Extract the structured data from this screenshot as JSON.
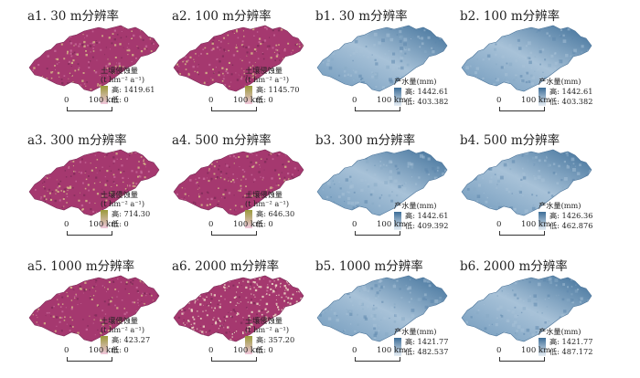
{
  "panels": [
    {
      "id": "a1",
      "title": "a1. 30 m分辨率",
      "kind": "erosion",
      "legend_title": "土壤侵蚀量",
      "legend_unit": "(t hm⁻² a⁻¹)",
      "high": "高: 1419.61",
      "low": "低: 0"
    },
    {
      "id": "a2",
      "title": "a2. 100 m分辨率",
      "kind": "erosion",
      "legend_title": "土壤侵蚀量",
      "legend_unit": "(t hm⁻² a⁻¹)",
      "high": "高: 1145.70",
      "low": "低: 0"
    },
    {
      "id": "b1",
      "title": "b1. 30 m分辨率",
      "kind": "water",
      "legend_title": "产水量(mm)",
      "legend_unit": "",
      "high": "高: 1442.61",
      "low": "低: 403.382"
    },
    {
      "id": "b2",
      "title": "b2. 100 m分辨率",
      "kind": "water",
      "legend_title": "产水量(mm)",
      "legend_unit": "",
      "high": "高: 1442.61",
      "low": "低: 403.382"
    },
    {
      "id": "a3",
      "title": "a3. 300 m分辨率",
      "kind": "erosion",
      "legend_title": "土壤侵蚀量",
      "legend_unit": "(t hm⁻² a⁻¹)",
      "high": "高: 714.30",
      "low": "低: 0"
    },
    {
      "id": "a4",
      "title": "a4. 500 m分辨率",
      "kind": "erosion",
      "legend_title": "土壤侵蚀量",
      "legend_unit": "(t hm⁻² a⁻¹)",
      "high": "高: 646.30",
      "low": "低: 0"
    },
    {
      "id": "b3",
      "title": "b3. 300 m分辨率",
      "kind": "water",
      "legend_title": "产水量(mm)",
      "legend_unit": "",
      "high": "高: 1442.61",
      "low": "低: 409.392"
    },
    {
      "id": "b4",
      "title": "b4. 500 m分辨率",
      "kind": "water",
      "legend_title": "产水量(mm)",
      "legend_unit": "",
      "high": "高: 1426.36",
      "low": "低: 462.876"
    },
    {
      "id": "a5",
      "title": "a5. 1000 m分辨率",
      "kind": "erosion",
      "legend_title": "土壤侵蚀量",
      "legend_unit": "(t hm⁻² a⁻¹)",
      "high": "高: 423.27",
      "low": "低: 0"
    },
    {
      "id": "a6",
      "title": "a6. 2000 m分辨率",
      "kind": "erosion",
      "legend_title": "土壤侵蚀量",
      "legend_unit": "(t hm⁻² a⁻¹)",
      "high": "高: 357.20",
      "low": "低: 0"
    },
    {
      "id": "b5",
      "title": "b5. 1000 m分辨率",
      "kind": "water",
      "legend_title": "产水量(mm)",
      "legend_unit": "",
      "high": "高: 1421.77",
      "low": "低: 482.537"
    },
    {
      "id": "b6",
      "title": "b6. 2000 m分辨率",
      "kind": "water",
      "legend_title": "产水量(mm)",
      "legend_unit": "",
      "high": "高: 1421.77",
      "low": "低: 487.172"
    }
  ],
  "scale_bar": {
    "zero": "0",
    "label": "100 km"
  },
  "colors": {
    "erosion_high": "#9a9a3a",
    "erosion_low": "#f0c8dc",
    "erosion_fill": "#a5386f",
    "erosion_speckle": "#d8c28a",
    "water_high": "#3d6e98",
    "water_low": "#e8eff5",
    "water_fill": "#6f98bb",
    "water_light": "#a8c2d8"
  }
}
